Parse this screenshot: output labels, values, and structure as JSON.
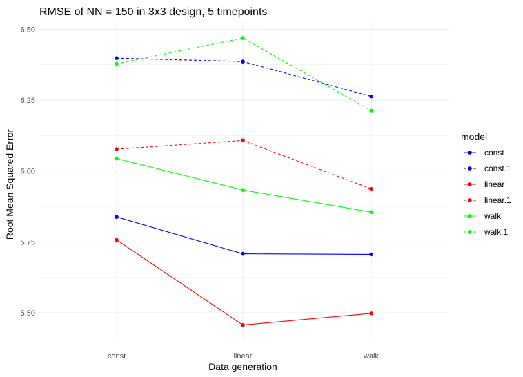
{
  "chart_data": {
    "type": "line",
    "title": "RMSE of NN = 150 in 3x3 design, 5 timepoints",
    "xlabel": "Data generation",
    "ylabel": "Root Mean Squared Error",
    "categories": [
      "const",
      "linear",
      "walk"
    ],
    "ylim": [
      5.41,
      6.53
    ],
    "yticks": [
      "5.50",
      "5.75",
      "6.00",
      "6.25",
      "6.50"
    ],
    "grid": true,
    "legend": {
      "title": "model",
      "position": "right"
    },
    "series": [
      {
        "name": "const",
        "color": "#0000ff",
        "dashed": false,
        "values": [
          5.838,
          5.708,
          5.706
        ]
      },
      {
        "name": "const.1",
        "color": "#0000ff",
        "dashed": true,
        "values": [
          6.398,
          6.386,
          6.263
        ]
      },
      {
        "name": "linear",
        "color": "#ff0000",
        "dashed": false,
        "values": [
          5.757,
          5.457,
          5.498
        ]
      },
      {
        "name": "linear.1",
        "color": "#ff0000",
        "dashed": true,
        "values": [
          6.077,
          6.108,
          5.937
        ]
      },
      {
        "name": "walk",
        "color": "#00ff00",
        "dashed": false,
        "values": [
          6.044,
          5.933,
          5.855
        ]
      },
      {
        "name": "walk.1",
        "color": "#00ff00",
        "dashed": true,
        "values": [
          6.378,
          6.469,
          6.213
        ]
      }
    ]
  }
}
